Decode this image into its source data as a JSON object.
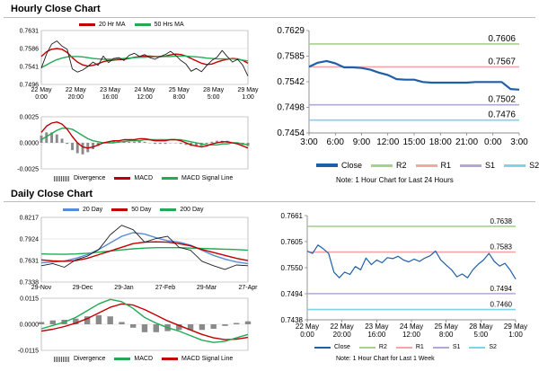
{
  "sections": {
    "hourly_title": "Hourly Close Chart",
    "daily_title": "Daily Close Chart"
  },
  "colors": {
    "close": "#1f1f1f",
    "ma_short": "#c00000",
    "ma_long": "#22aa55",
    "ma_200": "#22aa55",
    "ma_20": "#5b8bd6",
    "r2": "#a8d08d",
    "r1": "#f4a6a6",
    "s1": "#b4a7d6",
    "s2": "#7fd3e6",
    "close_blue": "#1f5fa8",
    "histogram": "#8a8a8a"
  },
  "legends": {
    "hourly_ma": [
      "20 Hr MA",
      "50 Hrs MA"
    ],
    "hourly_macd": [
      "Divergence",
      "MACD",
      "MACD Signal Line"
    ],
    "daily_ma": [
      "20 Day",
      "50 Day",
      "200 Day"
    ],
    "daily_macd": [
      "Divergence",
      "MACD",
      "MACD Signal Line"
    ],
    "levels": [
      "Close",
      "R2",
      "R1",
      "S1",
      "S2"
    ]
  },
  "notes": {
    "hour24": "Note: 1 Hour Chart for Last 24 Hours",
    "week": "Note: 1 Hour Chart for Last 1 Week"
  },
  "chart_data": [
    {
      "id": "hourly_close",
      "type": "line",
      "x_labels": [
        "22 May\n0:00",
        "22 May\n20:00",
        "23 May\n16:00",
        "24 May\n12:00",
        "25 May\n8:00",
        "28 May\n5:00",
        "29 May\n1:00"
      ],
      "y_ticks": [
        "0.7631",
        "0.7586",
        "0.7541",
        "0.7496"
      ],
      "ylim": [
        0.7496,
        0.7631
      ],
      "series": [
        {
          "name": "20 Hr MA",
          "values": [
            0.7566,
            0.7578,
            0.7584,
            0.7586,
            0.7584,
            0.7576,
            0.7563,
            0.7552,
            0.7545,
            0.7542,
            0.7544,
            0.7548,
            0.7553,
            0.7556,
            0.7557,
            0.7558,
            0.7559,
            0.7561,
            0.7564,
            0.7566,
            0.7567,
            0.7567,
            0.7566,
            0.7566,
            0.7567,
            0.757,
            0.7572,
            0.7571,
            0.7567,
            0.7561,
            0.7555,
            0.7549,
            0.7546,
            0.7547,
            0.7552,
            0.7556,
            0.7559,
            0.7561,
            0.756,
            0.7556,
            0.7549
          ]
        },
        {
          "name": "50 Hrs MA",
          "values": [
            0.7538,
            0.7545,
            0.7552,
            0.7558,
            0.7562,
            0.7565,
            0.7566,
            0.7566,
            0.7565,
            0.7563,
            0.7561,
            0.756,
            0.7559,
            0.7559,
            0.7559,
            0.756,
            0.7561,
            0.7562,
            0.7563,
            0.7564,
            0.7564,
            0.7565,
            0.7565,
            0.7565,
            0.7566,
            0.7566,
            0.7567,
            0.7567,
            0.7567,
            0.7566,
            0.7565,
            0.7564,
            0.7562,
            0.7561,
            0.756,
            0.756,
            0.756,
            0.756,
            0.7559,
            0.7557,
            0.7555
          ]
        },
        {
          "name": "Close",
          "values": [
            0.7537,
            0.7572,
            0.7597,
            0.7605,
            0.7592,
            0.7584,
            0.7535,
            0.7527,
            0.7532,
            0.7541,
            0.7552,
            0.7544,
            0.7567,
            0.7551,
            0.7561,
            0.7563,
            0.7556,
            0.7569,
            0.7574,
            0.7566,
            0.7571,
            0.7563,
            0.7559,
            0.7566,
            0.7571,
            0.7579,
            0.7569,
            0.7556,
            0.7547,
            0.7529,
            0.7536,
            0.7528,
            0.7543,
            0.7556,
            0.7564,
            0.7581,
            0.7566,
            0.7552,
            0.7559,
            0.7544,
            0.7517
          ]
        }
      ]
    },
    {
      "id": "hourly_macd",
      "type": "line",
      "y_ticks": [
        "0.0025",
        "0.0000",
        "-0.0025"
      ],
      "ylim": [
        -0.0025,
        0.0025
      ],
      "series": [
        {
          "name": "MACD",
          "values": [
            0.001,
            0.0016,
            0.0019,
            0.002,
            0.0018,
            0.0013,
            0.0006,
            0.0,
            -0.0004,
            -0.0005,
            -0.0004,
            -0.0002,
            0.0,
            0.0001,
            0.0002,
            0.0002,
            0.0003,
            0.0003,
            0.0003,
            0.0004,
            0.0004,
            0.0003,
            0.0002,
            0.0002,
            0.0002,
            0.0003,
            0.0003,
            0.0002,
            0.0,
            -0.0002,
            -0.0003,
            -0.0004,
            -0.0003,
            -0.0001,
            0.0,
            0.0001,
            0.0001,
            0.0,
            -0.0001,
            -0.0003,
            -0.0005
          ]
        },
        {
          "name": "MACD Signal Line",
          "values": [
            0.0003,
            0.0006,
            0.0009,
            0.0012,
            0.0014,
            0.0014,
            0.0013,
            0.001,
            0.0007,
            0.0004,
            0.0002,
            0.0001,
            0.0,
            0.0,
            0.0,
            0.0001,
            0.0001,
            0.0002,
            0.0002,
            0.0002,
            0.0003,
            0.0003,
            0.0003,
            0.0003,
            0.0003,
            0.0003,
            0.0003,
            0.0003,
            0.0002,
            0.0001,
            0.0,
            -0.0001,
            -0.0002,
            -0.0002,
            -0.0002,
            -0.0001,
            -0.0001,
            0.0,
            0.0,
            -0.0001,
            -0.0002
          ]
        }
      ]
    },
    {
      "id": "hour24_levels",
      "type": "line",
      "x_labels": [
        "3:00",
        "6:00",
        "9:00",
        "12:00",
        "15:00",
        "18:00",
        "21:00",
        "0:00",
        "3:00"
      ],
      "y_ticks": [
        "0.7629",
        "0.7585",
        "0.7542",
        "0.7498",
        "0.7454"
      ],
      "ylim": [
        0.7454,
        0.7629
      ],
      "levels": {
        "R2": 0.7606,
        "R1": 0.7567,
        "S1": 0.7502,
        "S2": 0.7476
      },
      "level_labels": {
        "R2": "0.7606",
        "R1": "0.7567",
        "S1": "0.7502",
        "S2": "0.7476"
      },
      "series": [
        {
          "name": "Close",
          "values": [
            0.7567,
            0.7574,
            0.7577,
            0.7573,
            0.7566,
            0.7566,
            0.7565,
            0.7562,
            0.7557,
            0.7553,
            0.7546,
            0.7545,
            0.7545,
            0.7541,
            0.754,
            0.754,
            0.754,
            0.754,
            0.754,
            0.7541,
            0.7541,
            0.7541,
            0.7541,
            0.7529,
            0.7528
          ]
        }
      ]
    },
    {
      "id": "daily_close",
      "type": "line",
      "x_labels": [
        "29-Nov",
        "29-Dec",
        "29-Jan",
        "27-Feb",
        "29-Mar",
        "27-Apr"
      ],
      "y_ticks": [
        "0.8217",
        "0.7924",
        "0.7631",
        "0.7338"
      ],
      "ylim": [
        0.7338,
        0.8217
      ],
      "series": [
        {
          "name": "20 Day",
          "values": [
            0.76,
            0.761,
            0.7625,
            0.766,
            0.771,
            0.778,
            0.787,
            0.796,
            0.801,
            0.799,
            0.794,
            0.79,
            0.788,
            0.784,
            0.777,
            0.77,
            0.765,
            0.761,
            0.759
          ]
        },
        {
          "name": "50 Day",
          "values": [
            0.764,
            0.7625,
            0.762,
            0.763,
            0.766,
            0.771,
            0.776,
            0.781,
            0.786,
            0.788,
            0.7885,
            0.788,
            0.786,
            0.783,
            0.778,
            0.774,
            0.77,
            0.766,
            0.763
          ]
        },
        {
          "name": "200 Day",
          "values": [
            0.772,
            0.7718,
            0.7715,
            0.772,
            0.773,
            0.7745,
            0.776,
            0.7775,
            0.779,
            0.78,
            0.7805,
            0.7805,
            0.7805,
            0.78,
            0.7795,
            0.779,
            0.7785,
            0.778,
            0.777
          ]
        },
        {
          "name": "Close",
          "values": [
            0.756,
            0.759,
            0.754,
            0.764,
            0.769,
            0.778,
            0.798,
            0.811,
            0.805,
            0.788,
            0.793,
            0.796,
            0.781,
            0.777,
            0.762,
            0.756,
            0.751,
            0.757,
            0.756
          ]
        }
      ]
    },
    {
      "id": "daily_macd",
      "type": "line",
      "y_ticks": [
        "0.0115",
        "0.0000",
        "-0.0115"
      ],
      "ylim": [
        -0.0115,
        0.0115
      ],
      "series": [
        {
          "name": "MACD",
          "values": [
            -0.002,
            -0.0005,
            0.001,
            0.003,
            0.006,
            0.009,
            0.011,
            0.01,
            0.007,
            0.003,
            0.0005,
            -0.0015,
            -0.003,
            -0.005,
            -0.007,
            -0.008,
            -0.0075,
            -0.006,
            -0.0045
          ]
        },
        {
          "name": "MACD Signal Line",
          "values": [
            -0.003,
            -0.0022,
            -0.001,
            0.0005,
            0.0025,
            0.005,
            0.0075,
            0.009,
            0.0085,
            0.0065,
            0.004,
            0.0015,
            -0.0005,
            -0.0025,
            -0.0045,
            -0.006,
            -0.0068,
            -0.0066,
            -0.0058
          ]
        }
      ]
    },
    {
      "id": "week_levels",
      "type": "line",
      "x_labels": [
        "22 May\n0:00",
        "22 May\n20:00",
        "23 May\n16:00",
        "24 May\n12:00",
        "25 May\n8:00",
        "28 May\n5:00",
        "29 May\n1:00"
      ],
      "y_ticks": [
        "0.7661",
        "0.7605",
        "0.7550",
        "0.7494",
        "0.7438"
      ],
      "ylim": [
        0.7438,
        0.7661
      ],
      "levels": {
        "R2": 0.7638,
        "R1": 0.7583,
        "S1": 0.7494,
        "S2": 0.746
      },
      "level_labels": {
        "R2": "0.7638",
        "R1": "0.7583",
        "S1": "0.7494",
        "S2": "0.7460"
      },
      "series": [
        {
          "name": "Close",
          "values": [
            0.7585,
            0.758,
            0.7598,
            0.759,
            0.758,
            0.754,
            0.7528,
            0.754,
            0.7535,
            0.7552,
            0.7545,
            0.757,
            0.7556,
            0.7566,
            0.756,
            0.7571,
            0.7569,
            0.7574,
            0.7566,
            0.7562,
            0.7568,
            0.7563,
            0.757,
            0.7575,
            0.7585,
            0.7566,
            0.7555,
            0.7545,
            0.753,
            0.7536,
            0.7528,
            0.7545,
            0.7557,
            0.7566,
            0.758,
            0.7563,
            0.7553,
            0.7559,
            0.7544,
            0.7525
          ]
        }
      ]
    }
  ]
}
